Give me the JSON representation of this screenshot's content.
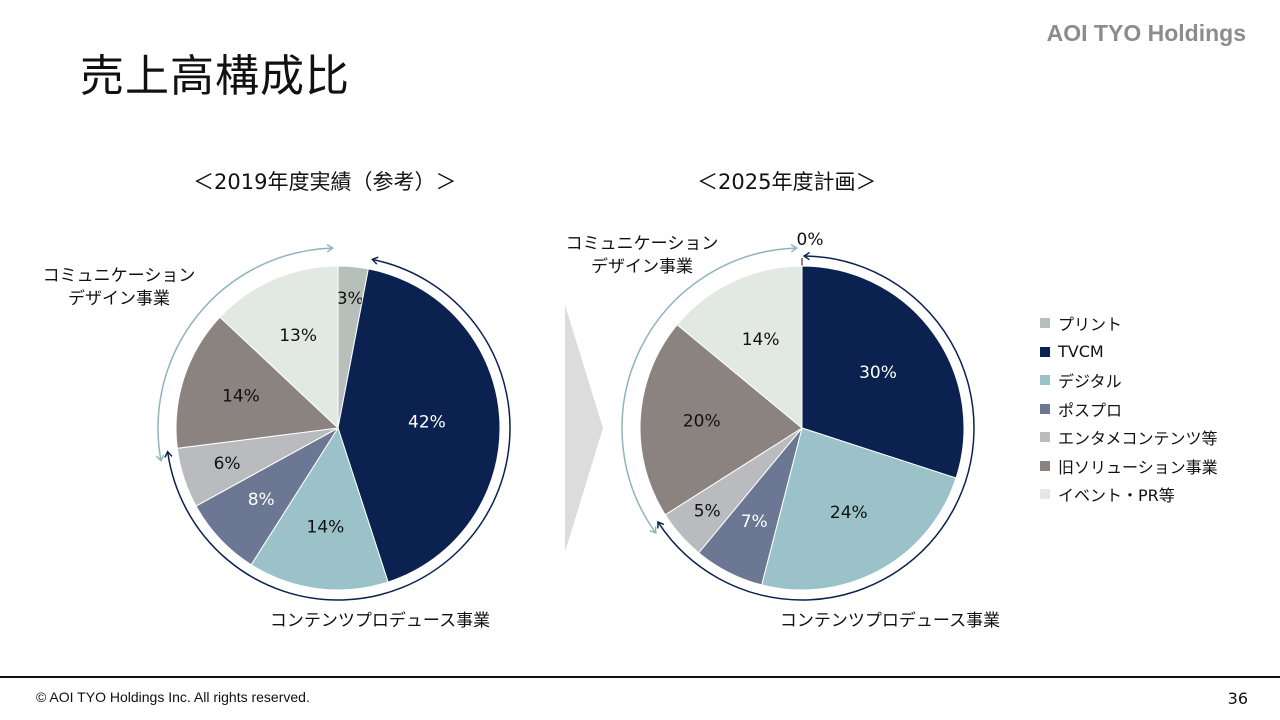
{
  "page": {
    "title": "売上高構成比",
    "brand": "AOI TYO Holdings",
    "copyright": "© AOI TYO Holdings Inc. All rights reserved.",
    "page_number": "36"
  },
  "group_labels": {
    "communication_design": "コミュニケーション\nデザイン事業",
    "content_produce": "コンテンツプロデュース事業"
  },
  "legend": [
    {
      "name": "プリント",
      "color": "#b7bfba"
    },
    {
      "name": "TVCM",
      "color": "#0b2250"
    },
    {
      "name": "デジタル",
      "color": "#9ac2c8"
    },
    {
      "name": "ポスプロ",
      "color": "#6b7793"
    },
    {
      "name": "エンタメコンテンツ等",
      "color": "#b9bbbf"
    },
    {
      "name": "旧ソリューション事業",
      "color": "#8b8380"
    },
    {
      "name": "イベント・PR等",
      "color": "#e1e9e2"
    }
  ],
  "colors": {
    "comm_arrow": "#8fb4bc",
    "content_arrow": "#0b2250",
    "chevron": "#dcdcdc"
  },
  "chart_data": [
    {
      "type": "pie",
      "title": "＜2019年度実績（参考）＞",
      "categories": [
        "プリント",
        "TVCM",
        "デジタル",
        "ポスプロ",
        "エンタメコンテンツ等",
        "旧ソリューション事業",
        "イベント・PR等"
      ],
      "values": [
        3,
        42,
        14,
        8,
        6,
        14,
        13
      ],
      "labels": [
        "3%",
        "42%",
        "14%",
        "8%",
        "6%",
        "14%",
        "13%"
      ],
      "unit": "%"
    },
    {
      "type": "pie",
      "title": "＜2025年度計画＞",
      "categories": [
        "プリント",
        "TVCM",
        "デジタル",
        "ポスプロ",
        "エンタメコンテンツ等",
        "旧ソリューション事業",
        "イベント・PR等"
      ],
      "values": [
        0,
        30,
        24,
        7,
        5,
        20,
        14
      ],
      "labels": [
        "0%",
        "30%",
        "24%",
        "7%",
        "5%",
        "20%",
        "14%"
      ],
      "unit": "%"
    }
  ]
}
